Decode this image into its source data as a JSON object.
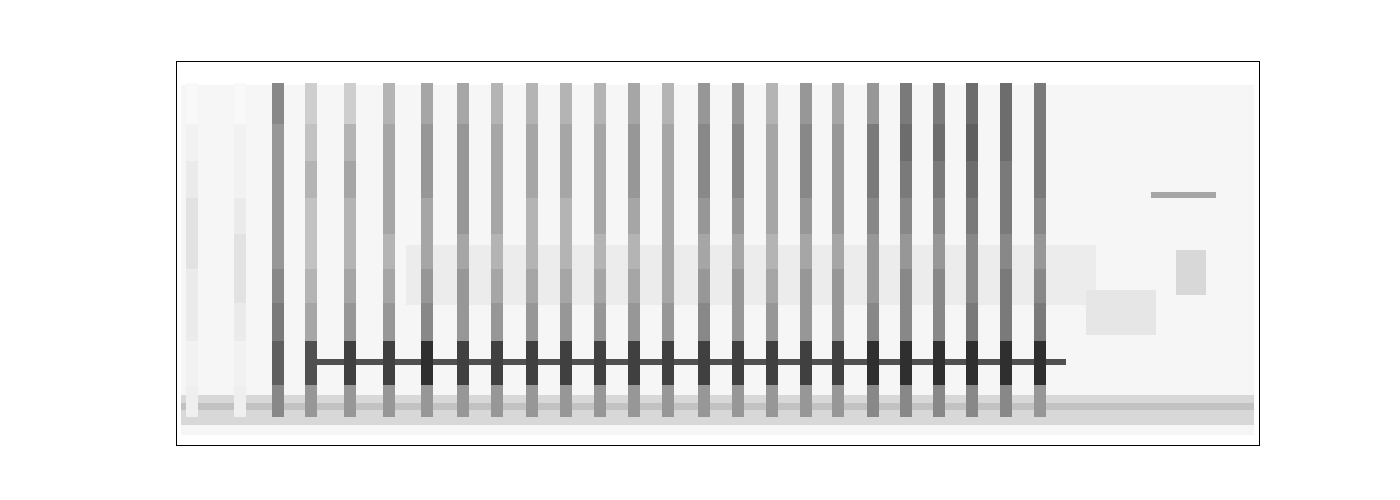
{
  "chart_data": {
    "type": "spectrogram",
    "tick_labels": false,
    "grid": false,
    "xlim": [
      0,
      1083
    ],
    "ylim": [
      0,
      384
    ],
    "color_range": [
      0,
      1
    ],
    "syllables": {
      "x0": [
        10,
        58,
        96,
        129,
        168,
        207,
        245,
        281,
        315,
        350,
        384,
        418,
        452,
        486,
        522,
        556,
        590,
        624,
        656,
        691,
        724,
        757,
        790,
        824,
        858
      ],
      "x1": [
        22,
        70,
        108,
        141,
        180,
        219,
        257,
        293,
        327,
        362,
        396,
        430,
        464,
        498,
        534,
        568,
        602,
        636,
        668,
        703,
        736,
        769,
        802,
        836,
        870
      ]
    },
    "bands": {
      "y0": [
        28,
        60,
        104,
        142,
        176,
        211,
        247,
        284,
        321
      ],
      "y1": [
        60,
        104,
        142,
        176,
        211,
        247,
        284,
        321,
        362
      ]
    },
    "cells": [
      [
        0.12,
        0.12,
        0.55,
        0.5,
        0.5,
        0.5,
        0.5,
        0.5,
        0.5,
        0.5,
        0.5,
        0.5,
        0.5,
        0.5,
        0.5,
        0.5,
        0.5,
        0.5,
        0.5,
        0.55,
        0.55,
        0.55,
        0.55,
        0.55,
        0.5
      ],
      [
        0.1,
        0.1,
        0.7,
        0.75,
        0.8,
        0.8,
        0.85,
        0.8,
        0.8,
        0.8,
        0.8,
        0.8,
        0.8,
        0.8,
        0.8,
        0.8,
        0.8,
        0.8,
        0.8,
        0.85,
        0.85,
        0.85,
        0.85,
        0.85,
        0.85
      ],
      [
        0.15,
        0.15,
        0.6,
        0.45,
        0.5,
        0.5,
        0.55,
        0.5,
        0.5,
        0.5,
        0.5,
        0.5,
        0.5,
        0.5,
        0.55,
        0.5,
        0.5,
        0.5,
        0.5,
        0.55,
        0.55,
        0.55,
        0.6,
        0.6,
        0.6
      ],
      [
        0.15,
        0.2,
        0.55,
        0.4,
        0.45,
        0.45,
        0.5,
        0.5,
        0.45,
        0.45,
        0.45,
        0.45,
        0.45,
        0.45,
        0.5,
        0.5,
        0.45,
        0.5,
        0.5,
        0.5,
        0.55,
        0.55,
        0.55,
        0.6,
        0.55
      ],
      [
        0.2,
        0.2,
        0.5,
        0.35,
        0.4,
        0.4,
        0.45,
        0.45,
        0.4,
        0.4,
        0.4,
        0.4,
        0.4,
        0.45,
        0.45,
        0.45,
        0.4,
        0.45,
        0.45,
        0.5,
        0.5,
        0.5,
        0.55,
        0.55,
        0.5
      ],
      [
        0.2,
        0.15,
        0.5,
        0.35,
        0.4,
        0.45,
        0.45,
        0.5,
        0.45,
        0.4,
        0.4,
        0.45,
        0.45,
        0.45,
        0.5,
        0.5,
        0.45,
        0.5,
        0.5,
        0.55,
        0.55,
        0.55,
        0.6,
        0.6,
        0.55
      ],
      [
        0.15,
        0.1,
        0.5,
        0.4,
        0.45,
        0.45,
        0.5,
        0.5,
        0.45,
        0.45,
        0.45,
        0.45,
        0.5,
        0.45,
        0.55,
        0.55,
        0.45,
        0.55,
        0.5,
        0.6,
        0.6,
        0.6,
        0.65,
        0.6,
        0.6
      ],
      [
        0.1,
        0.1,
        0.5,
        0.35,
        0.4,
        0.45,
        0.5,
        0.5,
        0.45,
        0.45,
        0.45,
        0.45,
        0.5,
        0.45,
        0.55,
        0.55,
        0.45,
        0.55,
        0.5,
        0.6,
        0.65,
        0.65,
        0.7,
        0.65,
        0.6
      ],
      [
        0.05,
        0.05,
        0.55,
        0.3,
        0.3,
        0.4,
        0.45,
        0.45,
        0.4,
        0.4,
        0.4,
        0.4,
        0.45,
        0.4,
        0.5,
        0.5,
        0.4,
        0.5,
        0.45,
        0.5,
        0.6,
        0.6,
        0.65,
        0.65,
        0.6
      ]
    ],
    "streaks": [
      {
        "x0": 5,
        "x1": 1078,
        "y0": 10,
        "y1": 360,
        "value": 0.07
      },
      {
        "x0": 5,
        "x1": 1078,
        "y0": 20,
        "y1": 50,
        "value": 0.25
      },
      {
        "x0": 5,
        "x1": 1078,
        "y0": 35,
        "y1": 42,
        "value": 0.35
      },
      {
        "x0": 230,
        "x1": 920,
        "y0": 140,
        "y1": 200,
        "value": 0.14
      },
      {
        "x0": 910,
        "x1": 980,
        "y0": 110,
        "y1": 155,
        "value": 0.18
      },
      {
        "x0": 1000,
        "x1": 1030,
        "y0": 150,
        "y1": 195,
        "value": 0.25
      },
      {
        "x0": 975,
        "x1": 1040,
        "y0": 247,
        "y1": 253,
        "value": 0.45
      },
      {
        "x0": 130,
        "x1": 890,
        "y0": 80,
        "y1": 86,
        "value": 0.75
      }
    ]
  }
}
